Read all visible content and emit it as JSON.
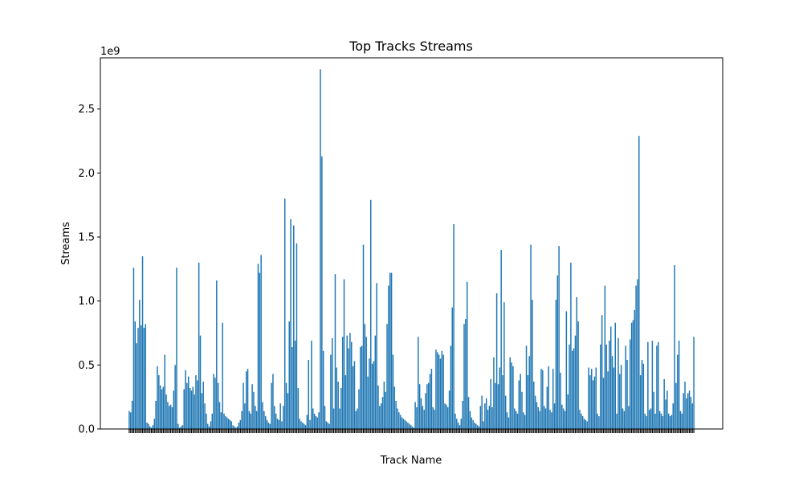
{
  "chart_data": {
    "type": "bar",
    "title": "Top Tracks Streams",
    "xlabel": "Track Name",
    "ylabel": "Streams",
    "y_scale_label": "1e9",
    "ylim": [
      0,
      2.9
    ],
    "y_ticks": [
      "0.0",
      "0.5",
      "1.0",
      "1.5",
      "2.0",
      "2.5"
    ],
    "y_tick_values": [
      0,
      0.5,
      1.0,
      1.5,
      2.0,
      2.5
    ],
    "bar_color": "#1f77b4",
    "value_unit": "billions of streams",
    "note": "Approximately 380 track bars read off the axis; the x tick labels overlap into an unreadable dark band, so track names are illegible and not transcribed.",
    "series": [
      {
        "name": "Streams",
        "values": [
          0.14,
          0.13,
          0.22,
          1.26,
          0.84,
          0.67,
          0.79,
          1.01,
          0.81,
          1.35,
          0.79,
          0.82,
          0.05,
          0.04,
          0.02,
          0.01,
          0.03,
          0.08,
          0.22,
          0.49,
          0.42,
          0.34,
          0.31,
          0.33,
          0.58,
          0.27,
          0.21,
          0.18,
          0.19,
          0.17,
          0.3,
          0.5,
          1.26,
          0.04,
          0.01,
          0.02,
          0.03,
          0.31,
          0.46,
          0.36,
          0.41,
          0.32,
          0.3,
          0.33,
          0.27,
          0.42,
          0.38,
          1.3,
          0.73,
          0.28,
          0.37,
          0.2,
          0.12,
          0.04,
          0.02,
          0.06,
          0.12,
          0.43,
          0.4,
          1.16,
          0.36,
          0.21,
          0.13,
          0.83,
          0.12,
          0.1,
          0.09,
          0.08,
          0.07,
          0.06,
          0.03,
          0.02,
          0.01,
          0.02,
          0.05,
          0.07,
          0.14,
          0.36,
          0.2,
          0.45,
          0.47,
          0.14,
          0.12,
          0.35,
          0.29,
          0.18,
          0.14,
          1.29,
          1.22,
          1.36,
          0.21,
          0.14,
          0.1,
          0.07,
          0.05,
          0.04,
          0.36,
          0.43,
          0.18,
          0.12,
          0.08,
          0.07,
          0.2,
          0.06,
          0.18,
          1.8,
          0.36,
          0.28,
          0.84,
          1.64,
          0.64,
          1.59,
          0.69,
          1.45,
          0.32,
          0.08,
          0.06,
          0.05,
          0.04,
          0.03,
          0.11,
          0.54,
          0.07,
          0.69,
          0.16,
          0.12,
          0.1,
          0.09,
          0.13,
          2.81,
          2.13,
          0.61,
          0.18,
          0.06,
          0.05,
          0.04,
          0.58,
          0.71,
          0.16,
          1.21,
          0.48,
          0.37,
          0.16,
          0.32,
          0.72,
          1.17,
          0.42,
          0.73,
          0.63,
          0.75,
          0.68,
          0.49,
          0.53,
          0.14,
          0.16,
          0.31,
          0.64,
          0.65,
          1.44,
          0.82,
          0.72,
          0.41,
          0.55,
          1.79,
          0.51,
          0.53,
          0.73,
          1.14,
          0.34,
          0.18,
          0.2,
          0.25,
          0.37,
          0.29,
          0.82,
          1.12,
          1.22,
          1.22,
          0.58,
          0.33,
          0.22,
          0.16,
          0.13,
          0.11,
          0.09,
          0.08,
          0.07,
          0.06,
          0.05,
          0.04,
          0.03,
          0.02,
          0.01,
          0.21,
          0.17,
          0.72,
          0.35,
          0.24,
          0.18,
          0.15,
          0.28,
          0.35,
          0.36,
          0.43,
          0.47,
          0.17,
          0.15,
          0.62,
          0.6,
          0.58,
          0.55,
          0.61,
          0.58,
          0.2,
          0.19,
          0.17,
          0.3,
          0.65,
          0.95,
          1.6,
          0.12,
          0.08,
          0.05,
          0.03,
          0.08,
          0.22,
          0.82,
          0.86,
          1.15,
          0.25,
          0.14,
          0.09,
          0.07,
          0.05,
          0.04,
          0.03,
          0.02,
          0.18,
          0.26,
          0.06,
          0.2,
          0.24,
          0.15,
          0.18,
          0.39,
          0.17,
          0.56,
          0.36,
          1.06,
          0.35,
          0.48,
          1.4,
          0.42,
          0.99,
          0.26,
          0.13,
          0.09,
          0.56,
          0.52,
          0.49,
          0.16,
          0.14,
          0.12,
          0.38,
          0.43,
          0.29,
          0.13,
          0.11,
          0.65,
          0.42,
          0.57,
          1.44,
          1.01,
          0.37,
          0.26,
          0.21,
          0.17,
          0.14,
          0.47,
          0.46,
          0.18,
          0.16,
          0.33,
          0.49,
          0.15,
          0.13,
          0.47,
          0.2,
          1.01,
          1.2,
          1.43,
          0.44,
          0.19,
          0.16,
          0.14,
          0.92,
          0.27,
          0.66,
          1.3,
          0.61,
          0.63,
          0.73,
          1.03,
          0.84,
          0.15,
          0.12,
          0.1,
          0.08,
          0.07,
          0.06,
          0.48,
          0.42,
          0.47,
          0.38,
          0.41,
          0.48,
          0.12,
          0.1,
          0.66,
          0.89,
          0.4,
          1.12,
          0.66,
          0.45,
          0.69,
          0.8,
          0.57,
          0.48,
          0.83,
          0.12,
          0.71,
          0.43,
          0.5,
          0.16,
          0.14,
          0.65,
          0.54,
          0.18,
          0.7,
          0.83,
          0.85,
          0.93,
          1.12,
          1.17,
          2.29,
          0.42,
          0.54,
          0.51,
          0.12,
          0.1,
          0.68,
          0.15,
          0.16,
          0.69,
          0.29,
          0.12,
          0.65,
          0.68,
          0.14,
          0.12,
          0.1,
          0.39,
          0.23,
          0.3,
          0.12,
          0.1,
          0.11,
          0.2,
          1.28,
          0.36,
          0.58,
          0.69,
          0.14,
          0.12,
          0.28,
          0.37,
          0.24,
          0.28,
          0.3,
          0.25,
          0.2,
          0.72
        ]
      }
    ]
  }
}
